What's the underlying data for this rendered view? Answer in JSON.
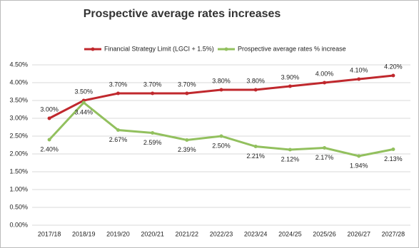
{
  "chart_data": {
    "type": "line",
    "title": "Prospective average rates increases",
    "categories": [
      "2017/18",
      "2018/19",
      "2019/20",
      "2020/21",
      "2021/22",
      "2022/23",
      "2023/24",
      "2024/25",
      "2025/26",
      "2026/27",
      "2027/28"
    ],
    "series": [
      {
        "name": "Financial Strategy Limit (LGCI + 1.5%)",
        "color": "#c0282d",
        "values": [
          3.0,
          3.5,
          3.7,
          3.7,
          3.7,
          3.8,
          3.8,
          3.9,
          4.0,
          4.1,
          4.2
        ],
        "value_labels": [
          "3.00%",
          "3.50%",
          "3.70%",
          "3.70%",
          "3.70%",
          "3.80%",
          "3.80%",
          "3.90%",
          "4.00%",
          "4.10%",
          "4.20%"
        ]
      },
      {
        "name": "Prospective average rates % increase",
        "color": "#92c05e",
        "values": [
          2.4,
          3.44,
          2.67,
          2.59,
          2.39,
          2.5,
          2.21,
          2.12,
          2.17,
          1.94,
          2.13
        ],
        "value_labels": [
          "2.40%",
          "3.44%",
          "2.67%",
          "2.59%",
          "2.39%",
          "2.50%",
          "2.21%",
          "2.12%",
          "2.17%",
          "1.94%",
          "2.13%"
        ]
      }
    ],
    "ylim": [
      0,
      4.5
    ],
    "yticks": [
      {
        "value": 0,
        "label": "0.00%"
      },
      {
        "value": 0.5,
        "label": "0.50%"
      },
      {
        "value": 1,
        "label": "1.00%"
      },
      {
        "value": 1.5,
        "label": "1.50%"
      },
      {
        "value": 2,
        "label": "2.00%"
      },
      {
        "value": 2.5,
        "label": "2.50%"
      },
      {
        "value": 3,
        "label": "3.00%"
      },
      {
        "value": 3.5,
        "label": "3.50%"
      },
      {
        "value": 4,
        "label": "4.00%"
      },
      {
        "value": 4.5,
        "label": "4.50%"
      }
    ],
    "grid": true,
    "legend": "top"
  }
}
